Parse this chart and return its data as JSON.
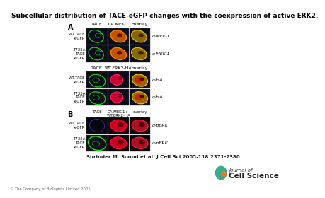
{
  "title": "Subcellular distribution of TACE-eGFP changes with the coexpression of active ERK2.",
  "title_fontsize": 6.5,
  "citation": "Surinder M. Soond et al. J Cell Sci 2005;118:2371-2380",
  "copyright": "© The Company of Biologists Limited 2005",
  "bg_color": "#ffffff",
  "section_A_label": "A",
  "section_B_label": "B",
  "panel_A1_cols": [
    "TACE",
    "CA.MEK-1",
    "overlay"
  ],
  "panel_A2_cols": [
    "TACE",
    "WT.ERK2-HA",
    "overlay"
  ],
  "panel_B_cols": [
    "TACE",
    "CA.MEK-1+\nWT.ERK2-HA",
    "overlay"
  ],
  "row_labels_A": [
    "WT.TACE\n-eGFP",
    "T735A\nTACE\n-eGFP"
  ],
  "row_labels_middle": [
    "WT.TACE\n-eGFP",
    "T735A\nTACE\n-eGFP"
  ],
  "row_labels_B": [
    "WT.TACE\n-eGFP",
    "T735A\nTACE\n-eGFP"
  ],
  "side_labels_A": [
    "α-MEK-1",
    "α-MEK-1"
  ],
  "side_labels_middle": [
    "α-HA",
    "α-HA"
  ],
  "side_labels_B": [
    "α-pERK",
    "α-pERK"
  ],
  "journal_name_line1": "Journal of",
  "journal_name_line2": "Cell Science",
  "logo_teal": "#3aab8c",
  "logo_orange": "#e07830"
}
